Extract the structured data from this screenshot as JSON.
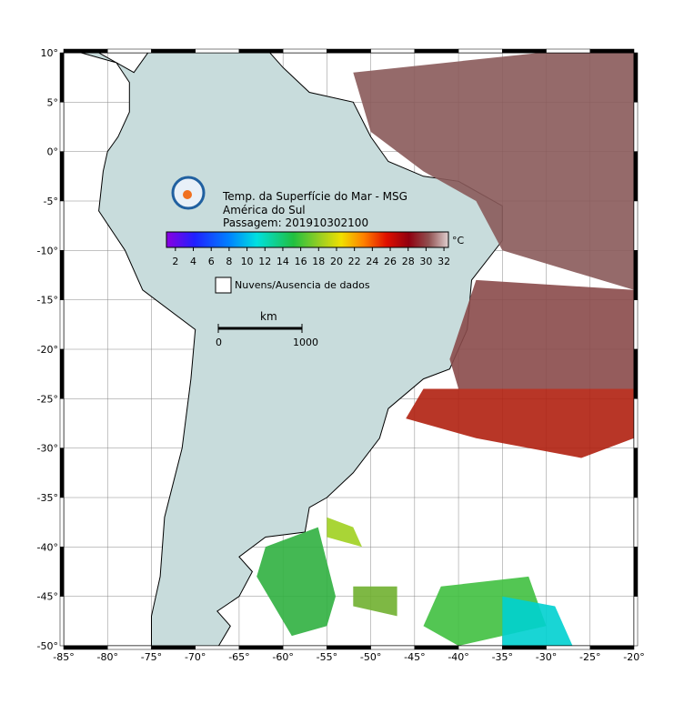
{
  "map": {
    "title_lines": [
      "Temp. da Superfície do Mar - MSG",
      "América do Sul",
      "Passagem: 201910302100"
    ],
    "lon_ticks": [
      {
        "value": -85,
        "label": "-85°"
      },
      {
        "value": -80,
        "label": "-80°"
      },
      {
        "value": -75,
        "label": "-75°"
      },
      {
        "value": -70,
        "label": "-70°"
      },
      {
        "value": -65,
        "label": "-65°"
      },
      {
        "value": -60,
        "label": "-60°"
      },
      {
        "value": -55,
        "label": "-55°"
      },
      {
        "value": -50,
        "label": "-50°"
      },
      {
        "value": -45,
        "label": "-45°"
      },
      {
        "value": -40,
        "label": "-40°"
      },
      {
        "value": -35,
        "label": "-35°"
      },
      {
        "value": -30,
        "label": "-30°"
      },
      {
        "value": -25,
        "label": "-25°"
      },
      {
        "value": -20,
        "label": "-20°"
      }
    ],
    "lat_ticks": [
      {
        "value": 10,
        "label": "10°"
      },
      {
        "value": 5,
        "label": "5°"
      },
      {
        "value": 0,
        "label": "0°"
      },
      {
        "value": -5,
        "label": "-5°"
      },
      {
        "value": -10,
        "label": "-10°"
      },
      {
        "value": -15,
        "label": "-15°"
      },
      {
        "value": -20,
        "label": "-20°"
      },
      {
        "value": -25,
        "label": "-25°"
      },
      {
        "value": -30,
        "label": "-30°"
      },
      {
        "value": -35,
        "label": "-35°"
      },
      {
        "value": -40,
        "label": "-40°"
      },
      {
        "value": -45,
        "label": "-45°"
      },
      {
        "value": -50,
        "label": "-50°"
      }
    ],
    "colorbar": {
      "range": [
        1,
        32.5
      ],
      "ticks": [
        2,
        4,
        6,
        8,
        10,
        12,
        14,
        16,
        18,
        20,
        22,
        24,
        26,
        28,
        30,
        32
      ],
      "unit": "°C"
    },
    "legend": "Nuvens/Ausencia de dados",
    "scale_bar": {
      "unit": "km",
      "start": "0",
      "end": "1000"
    }
  }
}
